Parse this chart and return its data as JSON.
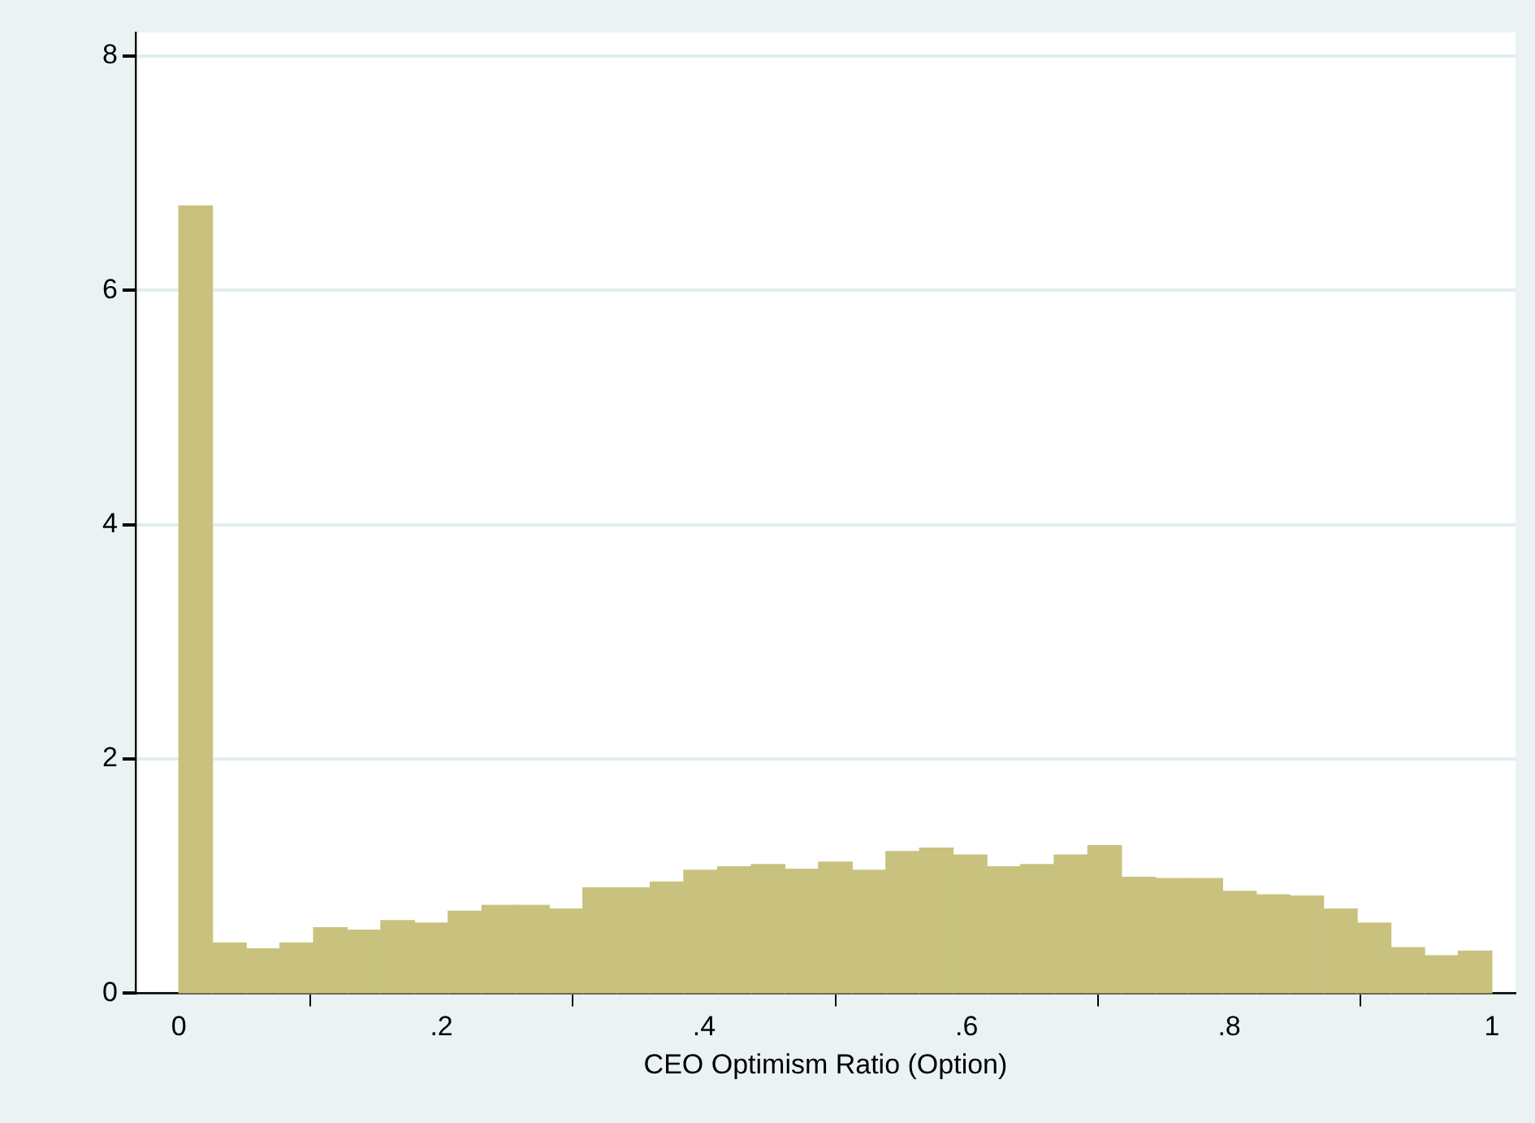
{
  "chart_data": {
    "type": "histogram",
    "xlabel": "CEO Optimism Ratio (Option)",
    "bins": [
      0,
      0.0256,
      0.0513,
      0.0769,
      0.1026,
      0.1282,
      0.1538,
      0.1795,
      0.2051,
      0.2308,
      0.2564,
      0.2821,
      0.3077,
      0.3333,
      0.359,
      0.3846,
      0.4103,
      0.4359,
      0.4615,
      0.4872,
      0.5128,
      0.5385,
      0.5641,
      0.5897,
      0.6154,
      0.641,
      0.6667,
      0.6923,
      0.7179,
      0.7436,
      0.7692,
      0.7949,
      0.8205,
      0.8462,
      0.8718,
      0.8974,
      0.9231,
      0.9487,
      0.9744,
      1
    ],
    "values": [
      6.72,
      0.43,
      0.38,
      0.43,
      0.56,
      0.54,
      0.62,
      0.6,
      0.7,
      0.75,
      0.75,
      0.72,
      0.9,
      0.9,
      0.95,
      1.05,
      1.08,
      1.1,
      1.06,
      1.12,
      1.05,
      1.21,
      1.24,
      1.18,
      1.08,
      1.1,
      1.18,
      1.26,
      0.99,
      0.98,
      0.98,
      0.87,
      0.84,
      0.83,
      0.72,
      0.6,
      0.39,
      0.32,
      0.36
    ],
    "color": "#c9c27f",
    "xlim": [
      -0.033,
      1.018
    ],
    "xticks": [
      0,
      {
        "value": 0.2,
        "label": ".2"
      },
      {
        "value": 0.4,
        "label": ".4"
      },
      {
        "value": 0.6,
        "label": ".6"
      },
      {
        "value": 0.8,
        "label": ".8"
      },
      1
    ],
    "ylim": [
      0,
      8.2
    ],
    "yticks": [
      0,
      2,
      4,
      6,
      8
    ],
    "grid": "y"
  }
}
